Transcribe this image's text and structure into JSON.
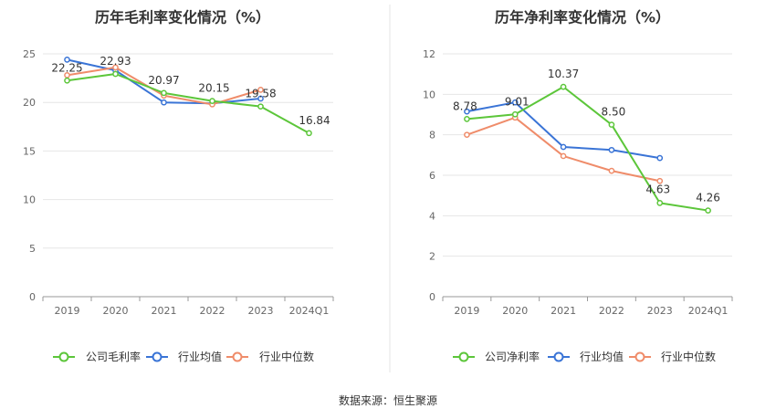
{
  "source_label": "数据来源：恒生聚源",
  "colors": {
    "company": "#5cc63a",
    "industry_avg": "#3a74d6",
    "industry_median": "#ef8c6a",
    "grid": "#e6e6e6",
    "axis": "#999999"
  },
  "chart_data": [
    {
      "type": "line",
      "title": "历年毛利率变化情况（%）",
      "categories": [
        "2019",
        "2020",
        "2021",
        "2022",
        "2023",
        "2024Q1"
      ],
      "ylim": [
        0,
        25
      ],
      "yticks": [
        0,
        5,
        10,
        15,
        20,
        25
      ],
      "grid": true,
      "legend_position": "bottom",
      "series": [
        {
          "name": "公司毛利率",
          "key": "company",
          "values": [
            22.25,
            22.93,
            20.97,
            20.15,
            19.58,
            16.84
          ],
          "labels": [
            "22.25",
            "22.93",
            "20.97",
            "20.15",
            "19.58",
            "16.84"
          ]
        },
        {
          "name": "行业均值",
          "key": "industry_avg",
          "values": [
            24.4,
            23.3,
            20.0,
            19.9,
            20.4,
            null
          ]
        },
        {
          "name": "行业中位数",
          "key": "industry_median",
          "values": [
            22.8,
            23.6,
            20.7,
            19.8,
            21.3,
            null
          ]
        }
      ]
    },
    {
      "type": "line",
      "title": "历年净利率变化情况（%）",
      "categories": [
        "2019",
        "2020",
        "2021",
        "2022",
        "2023",
        "2024Q1"
      ],
      "ylim": [
        0,
        12
      ],
      "yticks": [
        0,
        2,
        4,
        6,
        8,
        10,
        12
      ],
      "grid": true,
      "legend_position": "bottom",
      "series": [
        {
          "name": "公司净利率",
          "key": "company",
          "values": [
            8.78,
            9.01,
            10.37,
            8.5,
            4.63,
            4.26
          ],
          "labels": [
            "8.78",
            "9.01",
            "10.37",
            "8.50",
            "4.63",
            "4.26"
          ]
        },
        {
          "name": "行业均值",
          "key": "industry_avg",
          "values": [
            9.15,
            9.6,
            7.4,
            7.25,
            6.85,
            null
          ]
        },
        {
          "name": "行业中位数",
          "key": "industry_median",
          "values": [
            8.0,
            8.85,
            6.95,
            6.22,
            5.72,
            null
          ]
        }
      ]
    }
  ]
}
